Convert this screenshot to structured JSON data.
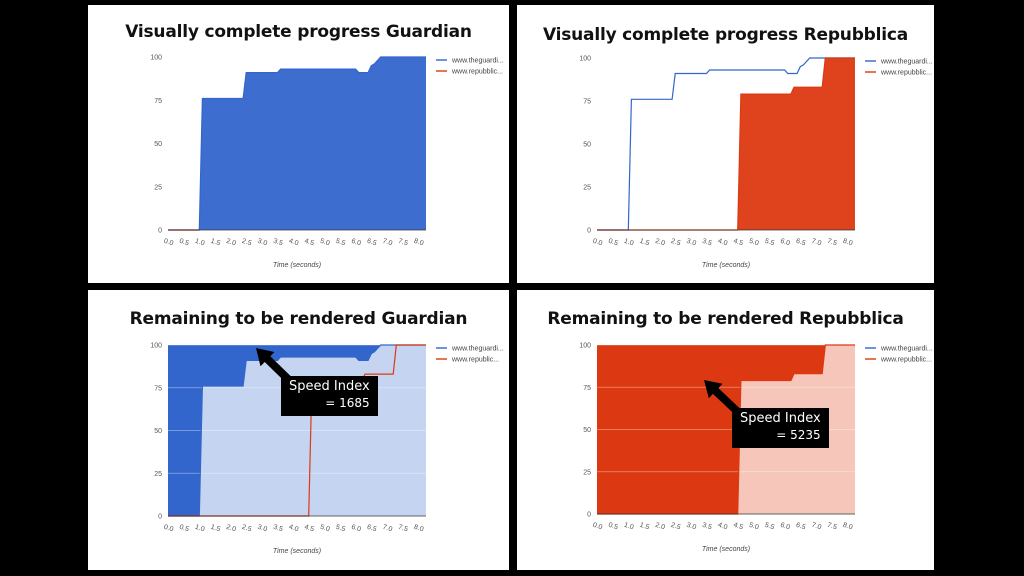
{
  "chart_data": [
    {
      "type": "area",
      "title": "Visually complete progress Guardian",
      "xlabel": "Time (seconds)",
      "ylabel": "",
      "xlim": [
        0,
        8.25
      ],
      "ylim": [
        0,
        100
      ],
      "yticks": [
        "0",
        "25",
        "50",
        "75",
        "100"
      ],
      "xticks": [
        "0.0",
        "0.5",
        "1.0",
        "1.5",
        "2.0",
        "2.5",
        "3.0",
        "3.5",
        "4.0",
        "4.5",
        "5.0",
        "5.5",
        "6.0",
        "6.5",
        "7.0",
        "7.5",
        "8.0"
      ],
      "legend": [
        "www.theguardi...",
        "www.repubblic..."
      ],
      "legend_position": "right",
      "grid": false,
      "series": [
        {
          "name": "www.theguardi...",
          "color": "#3366CC",
          "fill": "#3366CC",
          "fill_mode": "below",
          "points": [
            [
              0,
              0
            ],
            [
              1.0,
              0
            ],
            [
              1.1,
              76
            ],
            [
              2.4,
              76
            ],
            [
              2.5,
              91
            ],
            [
              3.5,
              91
            ],
            [
              3.6,
              93
            ],
            [
              6.0,
              93
            ],
            [
              6.1,
              91
            ],
            [
              6.4,
              91
            ],
            [
              6.5,
              95
            ],
            [
              6.6,
              96
            ],
            [
              6.8,
              100
            ],
            [
              8.25,
              100
            ]
          ]
        },
        {
          "name": "www.repubblic...",
          "color": "#DC3912",
          "fill": "#DC3912",
          "fill_mode": "below",
          "points": [
            [
              0,
              0
            ],
            [
              1.0,
              0
            ]
          ]
        }
      ]
    },
    {
      "type": "line",
      "title": "Visually complete progress Repubblica",
      "xlabel": "Time (seconds)",
      "ylabel": "",
      "xlim": [
        0,
        8.25
      ],
      "ylim": [
        0,
        100
      ],
      "yticks": [
        "0",
        "25",
        "50",
        "75",
        "100"
      ],
      "xticks": [
        "0.0",
        "0.5",
        "1.0",
        "1.5",
        "2.0",
        "2.5",
        "3.0",
        "3.5",
        "4.0",
        "4.5",
        "5.0",
        "5.5",
        "6.0",
        "6.5",
        "7.0",
        "7.5",
        "8.0"
      ],
      "legend": [
        "www.theguardi...",
        "www.repubblic..."
      ],
      "legend_position": "right",
      "grid": false,
      "series": [
        {
          "name": "www.theguardi...",
          "color": "#3366CC",
          "fill": "none",
          "fill_mode": "none",
          "points": [
            [
              0,
              0
            ],
            [
              1.0,
              0
            ],
            [
              1.1,
              76
            ],
            [
              2.4,
              76
            ],
            [
              2.5,
              91
            ],
            [
              3.5,
              91
            ],
            [
              3.6,
              93
            ],
            [
              6.0,
              93
            ],
            [
              6.1,
              91
            ],
            [
              6.4,
              91
            ],
            [
              6.5,
              95
            ],
            [
              6.6,
              96
            ],
            [
              6.8,
              100
            ],
            [
              8.25,
              100
            ]
          ]
        },
        {
          "name": "www.repubblic...",
          "color": "#DC3912",
          "fill": "#DC3912",
          "fill_mode": "below",
          "points": [
            [
              0,
              0
            ],
            [
              4.5,
              0
            ],
            [
              4.6,
              79
            ],
            [
              6.2,
              79
            ],
            [
              6.3,
              83
            ],
            [
              7.2,
              83
            ],
            [
              7.3,
              100
            ],
            [
              8.25,
              100
            ]
          ]
        }
      ]
    },
    {
      "type": "area",
      "title": "Remaining to be rendered Guardian",
      "xlabel": "Time (seconds)",
      "ylabel": "",
      "xlim": [
        0,
        8.25
      ],
      "ylim": [
        0,
        100
      ],
      "yticks": [
        "0",
        "25",
        "50",
        "75",
        "100"
      ],
      "xticks": [
        "0.0",
        "0.5",
        "1.0",
        "1.5",
        "2.0",
        "2.5",
        "3.0",
        "3.5",
        "4.0",
        "4.5",
        "5.0",
        "5.5",
        "6.0",
        "6.5",
        "7.0",
        "7.5",
        "8.0"
      ],
      "legend": [
        "www.theguardi...",
        "www.republic..."
      ],
      "legend_position": "right",
      "grid": true,
      "series": [
        {
          "name": "www.theguardi...",
          "color": "#3366CC",
          "fill": "#3366CC",
          "fill_mode": "above",
          "under_fill": "#C5D4F1",
          "points": [
            [
              0,
              0
            ],
            [
              1.0,
              0
            ],
            [
              1.1,
              76
            ],
            [
              2.4,
              76
            ],
            [
              2.5,
              91
            ],
            [
              3.5,
              91
            ],
            [
              3.6,
              93
            ],
            [
              6.0,
              93
            ],
            [
              6.1,
              91
            ],
            [
              6.4,
              91
            ],
            [
              6.5,
              95
            ],
            [
              6.6,
              96
            ],
            [
              6.8,
              100
            ],
            [
              8.25,
              100
            ]
          ]
        },
        {
          "name": "www.republic...",
          "color": "#DC3912",
          "fill": "none",
          "fill_mode": "none",
          "points": [
            [
              0,
              0
            ],
            [
              4.5,
              0
            ],
            [
              4.6,
              79
            ],
            [
              6.2,
              79
            ],
            [
              6.3,
              83
            ],
            [
              7.2,
              83
            ],
            [
              7.3,
              100
            ],
            [
              8.25,
              100
            ]
          ]
        }
      ],
      "annotation": {
        "line1": "Speed Index",
        "line2": "= 1685"
      }
    },
    {
      "type": "area",
      "title": "Remaining to be rendered Repubblica",
      "xlabel": "Time (seconds)",
      "ylabel": "",
      "xlim": [
        0,
        8.25
      ],
      "ylim": [
        0,
        100
      ],
      "yticks": [
        "0",
        "25",
        "50",
        "75",
        "100"
      ],
      "xticks": [
        "0.0",
        "0.5",
        "1.0",
        "1.5",
        "2.0",
        "2.5",
        "3.0",
        "3.5",
        "4.0",
        "4.5",
        "5.0",
        "5.5",
        "6.0",
        "6.5",
        "7.0",
        "7.5",
        "8.0"
      ],
      "legend": [
        "www.theguardi...",
        "www.repubblic..."
      ],
      "legend_position": "right",
      "grid": true,
      "series": [
        {
          "name": "www.repubblic...",
          "color": "#DC3912",
          "fill": "#DC3912",
          "fill_mode": "above",
          "under_fill": "#F5C6B9",
          "points": [
            [
              0,
              0
            ],
            [
              4.5,
              0
            ],
            [
              4.6,
              79
            ],
            [
              6.2,
              79
            ],
            [
              6.3,
              83
            ],
            [
              7.2,
              83
            ],
            [
              7.3,
              100
            ],
            [
              8.25,
              100
            ]
          ]
        }
      ],
      "annotation": {
        "line1": "Speed Index",
        "line2": "= 5235"
      }
    }
  ]
}
